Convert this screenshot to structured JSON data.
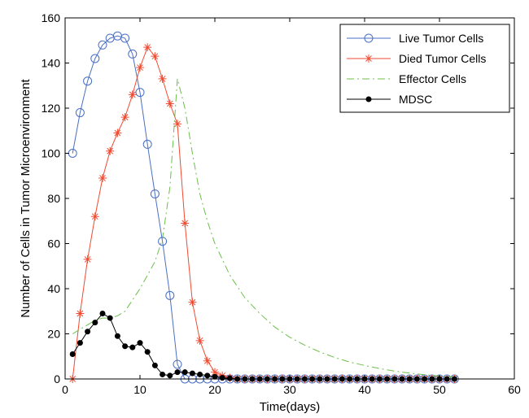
{
  "chart_data": {
    "type": "line",
    "xlabel": "Time(days)",
    "ylabel": "Number of Cells in Tumor Microenvironment",
    "xlim": [
      0,
      60
    ],
    "ylim": [
      0,
      160
    ],
    "xticks": [
      0,
      10,
      20,
      30,
      40,
      50,
      60
    ],
    "yticks": [
      0,
      20,
      40,
      60,
      80,
      100,
      120,
      140,
      160
    ],
    "grid": false,
    "legend_position": "top-right",
    "series": [
      {
        "name": "Live Tumor Cells",
        "color": "#4a6fc4",
        "line_style": "solid",
        "marker": "circle",
        "x": [
          1,
          2,
          3,
          4,
          5,
          6,
          7,
          8,
          9,
          10,
          11,
          12,
          13,
          14,
          15,
          16,
          17,
          18,
          19,
          20,
          21,
          22,
          23,
          24,
          25,
          26,
          27,
          28,
          29,
          30,
          31,
          32,
          33,
          34,
          35,
          36,
          37,
          38,
          39,
          40,
          41,
          42,
          43,
          44,
          45,
          46,
          47,
          48,
          49,
          50,
          51,
          52
        ],
        "y": [
          100,
          118,
          132,
          142,
          148,
          151,
          152,
          151,
          144,
          127,
          104,
          82,
          61,
          37,
          6.5,
          0,
          0,
          0,
          0,
          0,
          0,
          0,
          0,
          0,
          0,
          0,
          0,
          0,
          0,
          0,
          0,
          0,
          0,
          0,
          0,
          0,
          0,
          0,
          0,
          0,
          0,
          0,
          0,
          0,
          0,
          0,
          0,
          0,
          0,
          0,
          0,
          0
        ]
      },
      {
        "name": "Died Tumor Cells",
        "color": "#f04a30",
        "line_style": "solid",
        "marker": "asterisk",
        "x": [
          1,
          2,
          3,
          4,
          5,
          6,
          7,
          8,
          9,
          10,
          11,
          12,
          13,
          14,
          15,
          16,
          17,
          18,
          19,
          20,
          21,
          22,
          23,
          24,
          25,
          26,
          27,
          28,
          29,
          30,
          31,
          32,
          33,
          34,
          35,
          36,
          37,
          38,
          39,
          40,
          41,
          42,
          43,
          44,
          45,
          46,
          47,
          48,
          49,
          50,
          51,
          52
        ],
        "y": [
          0,
          29,
          53,
          72,
          89,
          101,
          109,
          116,
          126,
          138,
          147,
          143,
          133,
          122,
          113,
          69,
          34,
          17,
          8,
          3,
          1.5,
          0.5,
          0,
          0,
          0,
          0,
          0,
          0,
          0,
          0,
          0,
          0,
          0,
          0,
          0,
          0,
          0,
          0,
          0,
          0,
          0,
          0,
          0,
          0,
          0,
          0,
          0,
          0,
          0,
          0,
          0,
          0
        ]
      },
      {
        "name": "Effector Cells",
        "color": "#6cbf4a",
        "line_style": "dash-dot",
        "marker": "none",
        "x": [
          1,
          2,
          3,
          4,
          5,
          6,
          7,
          8,
          9,
          10,
          11,
          12,
          13,
          14,
          15,
          16,
          17,
          18,
          19,
          20,
          22,
          24,
          26,
          28,
          30,
          32,
          34,
          36,
          38,
          40,
          42,
          44,
          46,
          48,
          50,
          52
        ],
        "y": [
          20,
          22,
          24,
          26,
          27,
          27,
          28,
          30,
          35,
          40,
          46,
          52,
          62,
          85,
          133,
          120,
          100,
          82,
          70,
          60,
          46,
          36,
          29,
          23,
          18.5,
          15,
          12,
          9.5,
          7.5,
          6,
          4.6,
          3.5,
          2.6,
          1.9,
          1.3,
          0.9
        ]
      },
      {
        "name": "MDSC",
        "color": "#000000",
        "line_style": "solid",
        "marker": "dot",
        "x": [
          1,
          2,
          3,
          4,
          5,
          6,
          7,
          8,
          9,
          10,
          11,
          12,
          13,
          14,
          15,
          16,
          17,
          18,
          19,
          20,
          21,
          22,
          23,
          24,
          25,
          26,
          27,
          28,
          29,
          30,
          31,
          32,
          33,
          34,
          35,
          36,
          37,
          38,
          39,
          40,
          41,
          42,
          43,
          44,
          45,
          46,
          47,
          48,
          49,
          50,
          51,
          52
        ],
        "y": [
          11,
          16,
          21,
          25,
          29,
          27,
          19,
          14.5,
          14,
          16,
          12,
          6,
          2,
          1.5,
          3,
          3,
          2.5,
          2,
          1.5,
          1,
          0.5,
          0.3,
          0,
          0,
          0,
          0,
          0,
          0,
          0,
          0,
          0,
          0,
          0,
          0,
          0,
          0,
          0,
          0,
          0,
          0,
          0,
          0,
          0,
          0,
          0,
          0,
          0,
          0,
          0,
          0,
          0,
          0
        ]
      }
    ]
  }
}
